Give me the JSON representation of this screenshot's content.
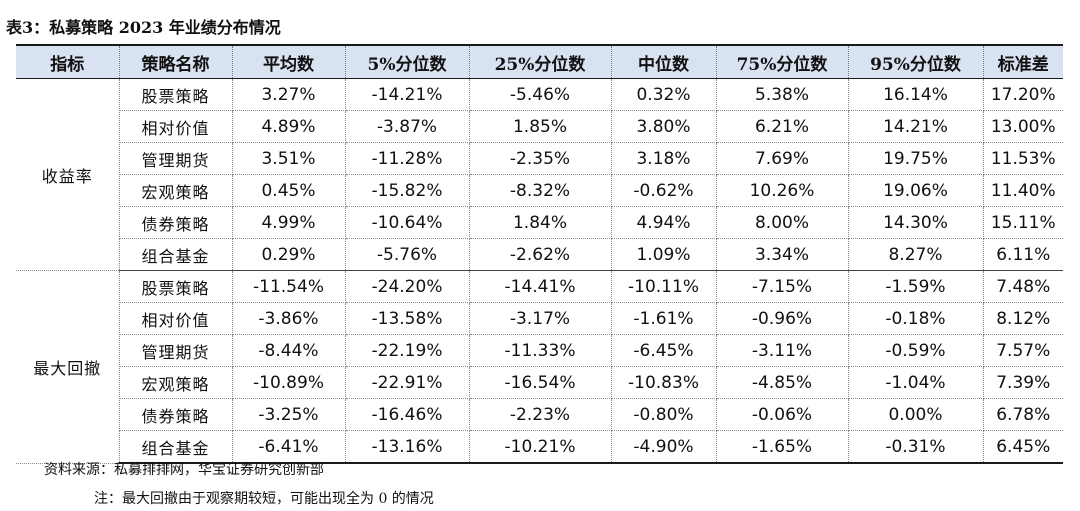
{
  "title": "表3：私募策略 2023 年业绩分布情况",
  "table": {
    "headers": [
      "指标",
      "策略名称",
      "平均数",
      "5%分位数",
      "25%分位数",
      "中位数",
      "75%分位数",
      "95%分位数",
      "标准差"
    ],
    "groups": [
      {
        "label": "收益率",
        "rows": [
          {
            "strategy": "股票策略",
            "values": [
              "3.27%",
              "-14.21%",
              "-5.46%",
              "0.32%",
              "5.38%",
              "16.14%",
              "17.20%"
            ]
          },
          {
            "strategy": "相对价值",
            "values": [
              "4.89%",
              "-3.87%",
              "1.85%",
              "3.80%",
              "6.21%",
              "14.21%",
              "13.00%"
            ]
          },
          {
            "strategy": "管理期货",
            "values": [
              "3.51%",
              "-11.28%",
              "-2.35%",
              "3.18%",
              "7.69%",
              "19.75%",
              "11.53%"
            ]
          },
          {
            "strategy": "宏观策略",
            "values": [
              "0.45%",
              "-15.82%",
              "-8.32%",
              "-0.62%",
              "10.26%",
              "19.06%",
              "11.40%"
            ]
          },
          {
            "strategy": "债券策略",
            "values": [
              "4.99%",
              "-10.64%",
              "1.84%",
              "4.94%",
              "8.00%",
              "14.30%",
              "15.11%"
            ]
          },
          {
            "strategy": "组合基金",
            "values": [
              "0.29%",
              "-5.76%",
              "-2.62%",
              "1.09%",
              "3.34%",
              "8.27%",
              "6.11%"
            ]
          }
        ]
      },
      {
        "label": "最大回撤",
        "rows": [
          {
            "strategy": "股票策略",
            "values": [
              "-11.54%",
              "-24.20%",
              "-14.41%",
              "-10.11%",
              "-7.15%",
              "-1.59%",
              "7.48%"
            ]
          },
          {
            "strategy": "相对价值",
            "values": [
              "-3.86%",
              "-13.58%",
              "-3.17%",
              "-1.61%",
              "-0.96%",
              "-0.18%",
              "8.12%"
            ]
          },
          {
            "strategy": "管理期货",
            "values": [
              "-8.44%",
              "-22.19%",
              "-11.33%",
              "-6.45%",
              "-3.11%",
              "-0.59%",
              "7.57%"
            ]
          },
          {
            "strategy": "宏观策略",
            "values": [
              "-10.89%",
              "-22.91%",
              "-16.54%",
              "-10.83%",
              "-4.85%",
              "-1.04%",
              "7.39%"
            ]
          },
          {
            "strategy": "债券策略",
            "values": [
              "-3.25%",
              "-16.46%",
              "-2.23%",
              "-0.80%",
              "-0.06%",
              "0.00%",
              "6.78%"
            ]
          },
          {
            "strategy": "组合基金",
            "values": [
              "-6.41%",
              "-13.16%",
              "-10.21%",
              "-4.90%",
              "-1.65%",
              "-0.31%",
              "6.45%"
            ]
          }
        ]
      }
    ]
  },
  "source": "资料来源：私募排排网，华宝证券研究创新部",
  "note": "注：最大回撤由于观察期较短，可能出现全为 0 的情况"
}
